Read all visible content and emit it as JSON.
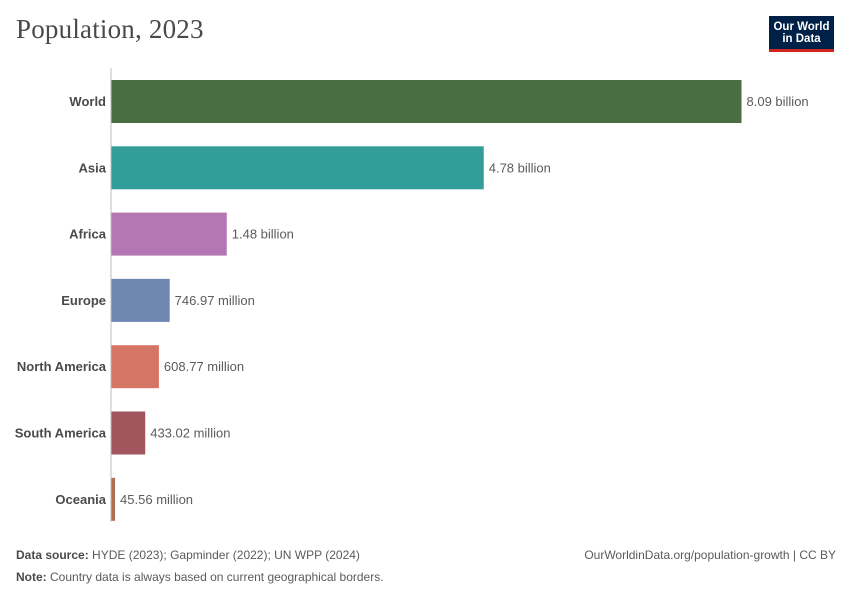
{
  "header": {
    "title": "Population, 2023",
    "logo_line1": "Our World",
    "logo_line2": "in Data"
  },
  "footer": {
    "source_label": "Data source:",
    "source_text": "HYDE (2023); Gapminder (2022); UN WPP (2024)",
    "note_label": "Note:",
    "note_text": "Country data is always based on current geographical borders.",
    "url_text": "OurWorldinData.org/population-growth | CC BY"
  },
  "chart_data": {
    "type": "bar",
    "orientation": "horizontal",
    "title": "Population, 2023",
    "xlabel": "",
    "ylabel": "",
    "xlim": [
      0,
      8090000000
    ],
    "grid": false,
    "categories": [
      "World",
      "Asia",
      "Africa",
      "Europe",
      "North America",
      "South America",
      "Oceania"
    ],
    "values": [
      8090000000,
      4780000000,
      1480000000,
      746970000,
      608770000,
      433020000,
      45560000
    ],
    "labels": [
      "8.09 billion",
      "4.78 billion",
      "1.48 billion",
      "746.97 million",
      "608.77 million",
      "433.02 million",
      "45.56 million"
    ],
    "colors": [
      "#4a6e3f",
      "#339e99",
      "#b576b4",
      "#6e87b0",
      "#d47566",
      "#a2555d",
      "#b06e52"
    ]
  }
}
